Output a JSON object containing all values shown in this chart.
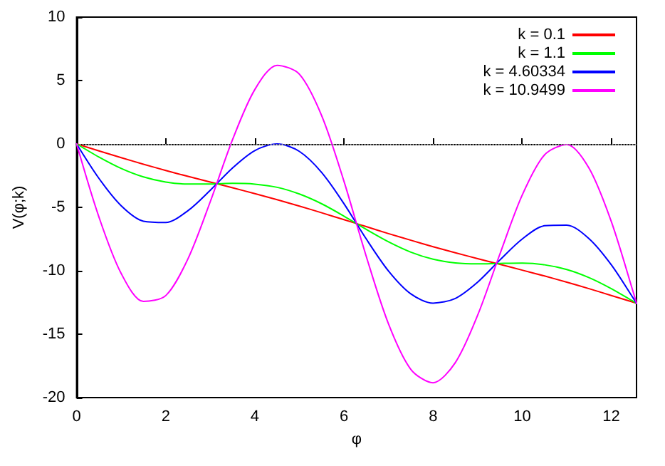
{
  "chart_data": {
    "type": "line",
    "xlabel": "φ",
    "ylabel": "V(φ;k)",
    "x": [
      0,
      0.5,
      1,
      1.5,
      2,
      2.5,
      3,
      3.5,
      4,
      4.5,
      5,
      5.5,
      6,
      6.5,
      7,
      7.5,
      8,
      8.5,
      9,
      9.5,
      10,
      10.5,
      11,
      11.5,
      12,
      12.5,
      12.566
    ],
    "series": [
      {
        "name": "k = 0.1",
        "color": "#ff0000",
        "values": [
          0,
          -0.55,
          -1.08,
          -1.6,
          -2.09,
          -2.56,
          -3.01,
          -3.46,
          -3.92,
          -4.4,
          -4.9,
          -5.43,
          -5.97,
          -6.52,
          -7.07,
          -7.59,
          -8.1,
          -8.58,
          -9.04,
          -9.49,
          -9.95,
          -10.41,
          -10.9,
          -11.41,
          -11.95,
          -12.49,
          -12.57
        ]
      },
      {
        "name": "k = 1.1",
        "color": "#00ff00",
        "values": [
          0,
          -1.03,
          -1.93,
          -2.6,
          -3.0,
          -3.16,
          -3.16,
          -3.11,
          -3.17,
          -3.42,
          -3.95,
          -4.72,
          -5.69,
          -6.74,
          -7.72,
          -8.53,
          -9.09,
          -9.38,
          -9.45,
          -9.42,
          -9.4,
          -9.53,
          -9.9,
          -10.54,
          -11.41,
          -12.43,
          -12.57
        ]
      },
      {
        "name": "k = 4.60334",
        "color": "#0000ff",
        "values": [
          0,
          -2.71,
          -4.87,
          -6.09,
          -6.19,
          -5.26,
          -3.65,
          -1.89,
          -0.52,
          0.0,
          -0.59,
          -2.25,
          -4.71,
          -7.49,
          -10.02,
          -11.82,
          -12.55,
          -12.18,
          -10.9,
          -9.15,
          -7.5,
          -6.45,
          -6.4,
          -7.47,
          -9.53,
          -12.2,
          -12.57
        ]
      },
      {
        "name": "k = 10.9499",
        "color": "#ff00ff",
        "values": [
          0,
          -5.75,
          -10.21,
          -12.42,
          -11.96,
          -9.05,
          -4.55,
          0.34,
          4.29,
          6.2,
          5.5,
          2.23,
          -2.94,
          -8.86,
          -14.19,
          -17.77,
          -18.83,
          -17.24,
          -13.51,
          -8.68,
          -4.04,
          -0.87,
          -0.05,
          -1.91,
          -6.12,
          -11.77,
          -12.57
        ]
      }
    ],
    "xlim": [
      0,
      12.566
    ],
    "xticks": [
      0,
      2,
      4,
      6,
      8,
      10,
      12
    ],
    "ylim": [
      -20,
      10
    ],
    "yticks": [
      -20,
      -15,
      -10,
      -5,
      0,
      5,
      10
    ],
    "ref_lines": [
      {
        "axis": "y",
        "value": 0,
        "color": "#a0a0a0",
        "line_style": "dotted"
      }
    ],
    "legend": "top right",
    "marker": "none",
    "line_style": "solid",
    "grid": false
  }
}
